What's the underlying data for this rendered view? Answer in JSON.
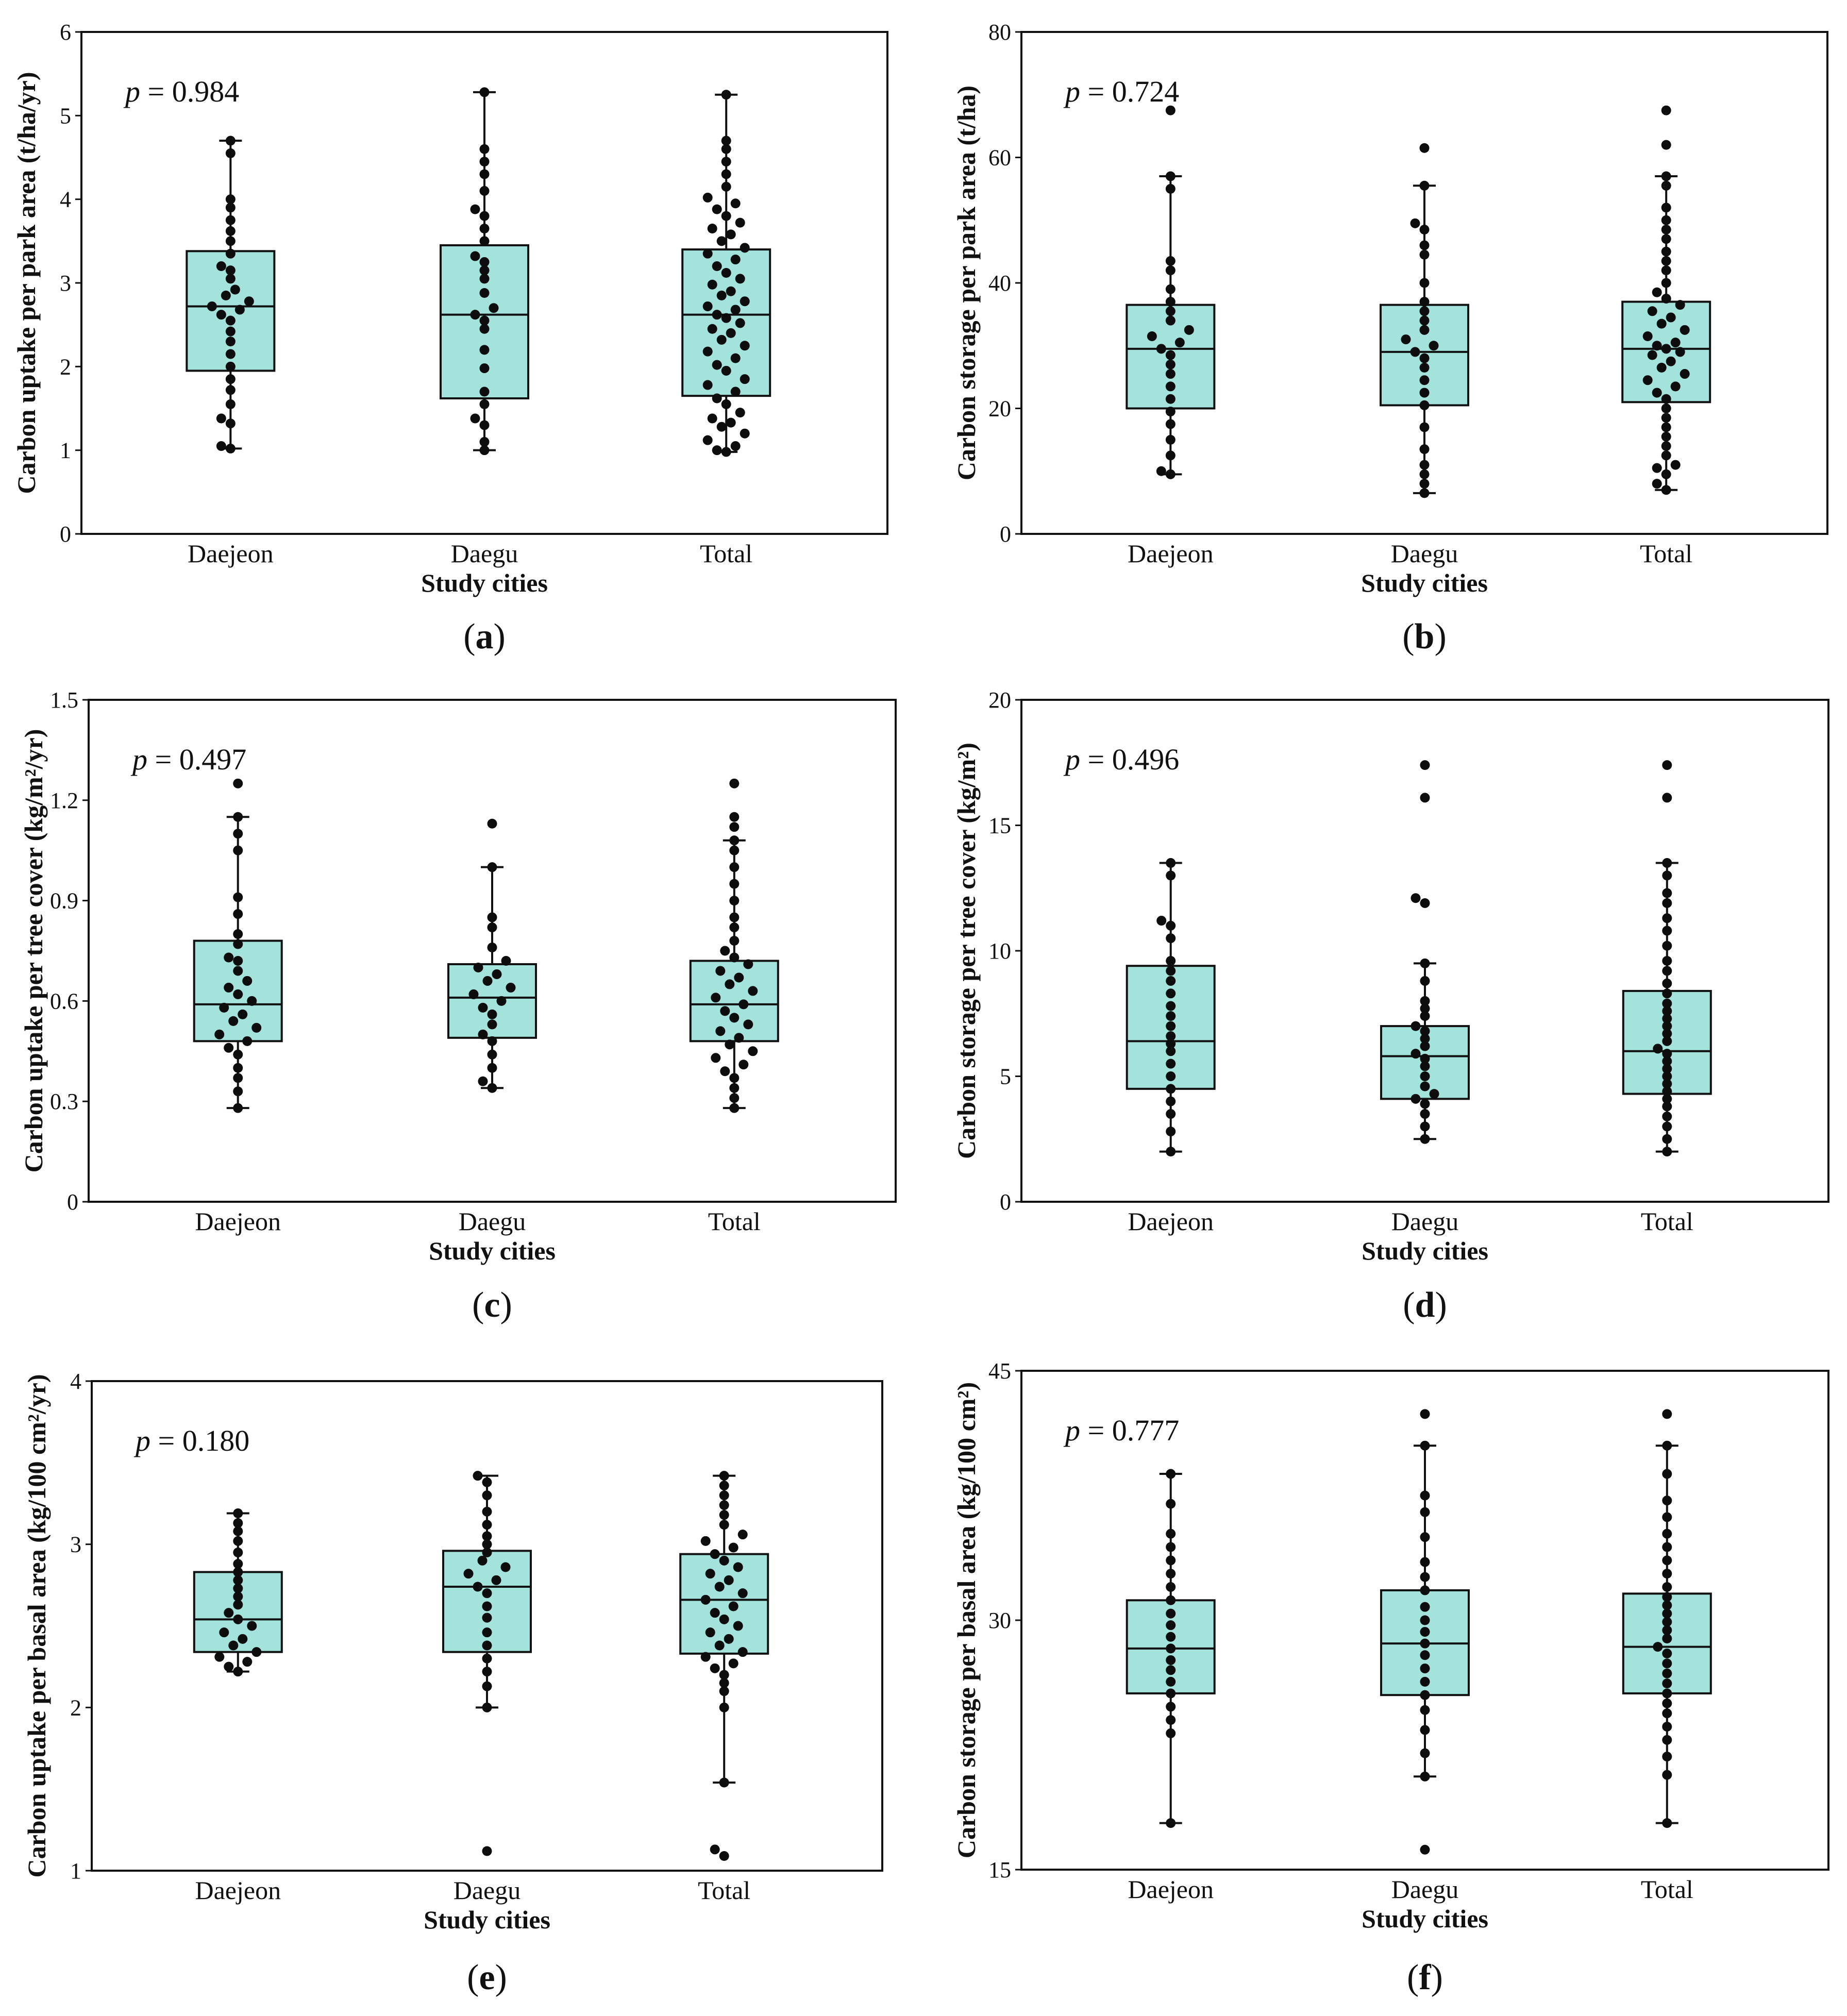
{
  "chart_data": [
    {
      "id": "a",
      "type": "box",
      "caption": "a",
      "p_value": "0.984",
      "ylabel": "Carbon uptake per park area (t/ha/yr)",
      "xlabel": "Study cities",
      "ylim": [
        0,
        6
      ],
      "yticks": [
        0,
        1,
        2,
        3,
        4,
        5,
        6
      ],
      "ytick_labels": [
        "0",
        "1",
        "2",
        "3",
        "4",
        "5",
        "6"
      ],
      "categories": [
        "Daejeon",
        "Daegu",
        "Total"
      ],
      "boxes": [
        {
          "city": "Daejeon",
          "min": 1.02,
          "q1": 1.95,
          "median": 2.72,
          "q3": 3.38,
          "max": 4.7,
          "points": [
            1.02,
            1.05,
            1.32,
            1.38,
            1.55,
            1.72,
            1.85,
            2.0,
            2.15,
            2.3,
            2.42,
            2.55,
            2.62,
            2.68,
            2.72,
            2.78,
            2.85,
            2.92,
            3.05,
            3.15,
            3.2,
            3.35,
            3.5,
            3.62,
            3.75,
            3.9,
            4.0,
            4.55,
            4.7
          ]
        },
        {
          "city": "Daegu",
          "min": 1.0,
          "q1": 1.62,
          "median": 2.62,
          "q3": 3.45,
          "max": 5.28,
          "points": [
            1.0,
            1.1,
            1.3,
            1.38,
            1.55,
            1.7,
            1.98,
            2.2,
            2.45,
            2.55,
            2.62,
            2.7,
            2.88,
            3.05,
            3.15,
            3.25,
            3.32,
            3.5,
            3.65,
            3.8,
            3.88,
            4.1,
            4.3,
            4.45,
            4.6,
            5.28
          ]
        },
        {
          "city": "Total",
          "min": 0.98,
          "q1": 1.65,
          "median": 2.62,
          "q3": 3.4,
          "max": 5.25,
          "points": [
            0.98,
            1.0,
            1.05,
            1.12,
            1.2,
            1.28,
            1.33,
            1.38,
            1.45,
            1.55,
            1.62,
            1.7,
            1.78,
            1.85,
            1.95,
            2.02,
            2.1,
            2.18,
            2.25,
            2.32,
            2.4,
            2.45,
            2.52,
            2.58,
            2.62,
            2.68,
            2.72,
            2.78,
            2.85,
            2.9,
            2.98,
            3.05,
            3.12,
            3.2,
            3.28,
            3.35,
            3.42,
            3.5,
            3.58,
            3.65,
            3.72,
            3.8,
            3.88,
            3.95,
            4.02,
            4.15,
            4.3,
            4.45,
            4.6,
            4.7,
            5.25
          ]
        }
      ]
    },
    {
      "id": "b",
      "type": "box",
      "caption": "b",
      "p_value": "0.724",
      "ylabel": "Carbon storage per park area (t/ha)",
      "xlabel": "Study cities",
      "ylim": [
        0,
        80
      ],
      "yticks": [
        0,
        20,
        40,
        60,
        80
      ],
      "ytick_labels": [
        "0",
        "20",
        "40",
        "60",
        "80"
      ],
      "categories": [
        "Daejeon",
        "Daegu",
        "Total"
      ],
      "boxes": [
        {
          "city": "Daejeon",
          "min": 9.5,
          "q1": 20.0,
          "median": 29.5,
          "q3": 36.5,
          "max": 57.0,
          "points": [
            9.5,
            10.0,
            12.5,
            15.0,
            17.5,
            19.5,
            21.5,
            23.5,
            25.5,
            27.0,
            28.5,
            29.5,
            30.5,
            31.5,
            32.5,
            34.0,
            35.5,
            37.0,
            39.0,
            42.0,
            43.5,
            55.0,
            57.0,
            67.5
          ]
        },
        {
          "city": "Daegu",
          "min": 6.5,
          "q1": 20.5,
          "median": 29.0,
          "q3": 36.5,
          "max": 55.5,
          "points": [
            6.5,
            8.0,
            9.5,
            11.0,
            13.5,
            17.0,
            20.5,
            22.5,
            24.5,
            26.5,
            28.0,
            29.0,
            30.0,
            31.0,
            32.5,
            34.0,
            35.5,
            37.0,
            40.0,
            44.5,
            46.0,
            48.5,
            49.5,
            55.5,
            61.5
          ]
        },
        {
          "city": "Total",
          "min": 7.0,
          "q1": 21.0,
          "median": 29.5,
          "q3": 37.0,
          "max": 57.0,
          "points": [
            7.0,
            8.0,
            9.5,
            10.5,
            11.0,
            12.5,
            14.0,
            15.5,
            17.0,
            18.5,
            20.0,
            21.5,
            22.5,
            23.5,
            24.5,
            25.5,
            26.5,
            27.5,
            28.5,
            29.0,
            29.5,
            30.0,
            30.5,
            31.5,
            32.5,
            33.5,
            34.5,
            35.5,
            36.5,
            37.5,
            38.5,
            40.0,
            42.0,
            43.5,
            45.0,
            47.0,
            48.5,
            50.0,
            52.0,
            55.5,
            57.0,
            62.0,
            67.5
          ]
        }
      ]
    },
    {
      "id": "c",
      "type": "box",
      "caption": "c",
      "p_value": "0.497",
      "ylabel": "Carbon uptake per tree cover (kg/m²/yr)",
      "xlabel": "Study cities",
      "ylim": [
        0,
        1.5
      ],
      "yticks": [
        0,
        0.3,
        0.6,
        0.9,
        1.2,
        1.5
      ],
      "ytick_labels": [
        "0",
        "0.3",
        "0.6",
        "0.9",
        "1.2",
        "1.5"
      ],
      "categories": [
        "Daejeon",
        "Daegu",
        "Total"
      ],
      "boxes": [
        {
          "city": "Daejeon",
          "min": 0.28,
          "q1": 0.48,
          "median": 0.59,
          "q3": 0.78,
          "max": 1.15,
          "points": [
            0.28,
            0.33,
            0.37,
            0.4,
            0.44,
            0.46,
            0.48,
            0.5,
            0.52,
            0.54,
            0.56,
            0.58,
            0.6,
            0.62,
            0.64,
            0.66,
            0.69,
            0.72,
            0.73,
            0.77,
            0.8,
            0.86,
            0.91,
            1.05,
            1.1,
            1.15,
            1.25
          ]
        },
        {
          "city": "Daegu",
          "min": 0.34,
          "q1": 0.49,
          "median": 0.61,
          "q3": 0.71,
          "max": 1.0,
          "points": [
            0.34,
            0.36,
            0.4,
            0.44,
            0.48,
            0.5,
            0.53,
            0.56,
            0.58,
            0.6,
            0.62,
            0.64,
            0.66,
            0.68,
            0.7,
            0.72,
            0.76,
            0.82,
            0.85,
            1.0,
            1.13
          ]
        },
        {
          "city": "Total",
          "min": 0.28,
          "q1": 0.48,
          "median": 0.59,
          "q3": 0.72,
          "max": 1.08,
          "points": [
            0.28,
            0.31,
            0.34,
            0.37,
            0.39,
            0.41,
            0.43,
            0.45,
            0.47,
            0.49,
            0.51,
            0.53,
            0.55,
            0.57,
            0.59,
            0.61,
            0.63,
            0.65,
            0.67,
            0.69,
            0.71,
            0.73,
            0.75,
            0.78,
            0.82,
            0.85,
            0.9,
            0.95,
            1.0,
            1.05,
            1.08,
            1.12,
            1.15,
            1.25
          ]
        }
      ]
    },
    {
      "id": "d",
      "type": "box",
      "caption": "d",
      "p_value": "0.496",
      "ylabel": "Carbon storage per tree cover (kg/m²)",
      "xlabel": "Study cities",
      "ylim": [
        0,
        20
      ],
      "yticks": [
        0,
        5,
        10,
        15,
        20
      ],
      "ytick_labels": [
        "0",
        "5",
        "10",
        "15",
        "20"
      ],
      "categories": [
        "Daejeon",
        "Daegu",
        "Total"
      ],
      "boxes": [
        {
          "city": "Daejeon",
          "min": 2.0,
          "q1": 4.5,
          "median": 6.4,
          "q3": 9.4,
          "max": 13.5,
          "points": [
            2.0,
            2.8,
            3.5,
            4.0,
            4.5,
            5.0,
            5.5,
            6.0,
            6.3,
            6.6,
            7.0,
            7.4,
            7.8,
            8.3,
            8.8,
            9.2,
            9.6,
            10.5,
            11.0,
            11.2,
            13.0,
            13.5
          ]
        },
        {
          "city": "Daegu",
          "min": 2.5,
          "q1": 4.1,
          "median": 5.8,
          "q3": 7.0,
          "max": 9.5,
          "points": [
            2.5,
            3.0,
            3.5,
            3.9,
            4.1,
            4.3,
            4.6,
            5.0,
            5.4,
            5.7,
            5.9,
            6.2,
            6.5,
            6.8,
            7.0,
            7.4,
            7.7,
            8.0,
            8.8,
            9.5,
            11.9,
            12.1,
            16.1,
            17.4
          ]
        },
        {
          "city": "Total",
          "min": 2.0,
          "q1": 4.3,
          "median": 6.0,
          "q3": 8.4,
          "max": 13.5,
          "points": [
            2.0,
            2.5,
            3.0,
            3.4,
            3.8,
            4.1,
            4.4,
            4.7,
            5.0,
            5.3,
            5.6,
            5.9,
            6.1,
            6.4,
            6.7,
            7.0,
            7.3,
            7.6,
            7.9,
            8.3,
            8.7,
            9.2,
            9.6,
            10.2,
            10.8,
            11.3,
            11.9,
            12.3,
            13.0,
            13.5,
            16.1,
            17.4
          ]
        }
      ]
    },
    {
      "id": "e",
      "type": "box",
      "caption": "e",
      "p_value": "0.180",
      "ylabel": "Carbon uptake per basal area (kg/100 cm²/yr)",
      "xlabel": "Study cities",
      "ylim": [
        1,
        4
      ],
      "yticks": [
        1,
        2,
        3,
        4
      ],
      "ytick_labels": [
        "1",
        "2",
        "3",
        "4"
      ],
      "categories": [
        "Daejeon",
        "Daegu",
        "Total"
      ],
      "boxes": [
        {
          "city": "Daejeon",
          "min": 2.22,
          "q1": 2.34,
          "median": 2.54,
          "q3": 2.83,
          "max": 3.19,
          "points": [
            2.22,
            2.25,
            2.28,
            2.31,
            2.34,
            2.38,
            2.42,
            2.46,
            2.5,
            2.54,
            2.58,
            2.63,
            2.68,
            2.73,
            2.78,
            2.83,
            2.88,
            2.95,
            3.02,
            3.08,
            3.13,
            3.19
          ]
        },
        {
          "city": "Daegu",
          "min": 2.0,
          "q1": 2.34,
          "median": 2.74,
          "q3": 2.96,
          "max": 3.42,
          "points": [
            2.0,
            2.13,
            2.22,
            2.3,
            2.38,
            2.46,
            2.55,
            2.62,
            2.7,
            2.74,
            2.78,
            2.82,
            2.86,
            2.9,
            2.95,
            3.0,
            3.05,
            3.12,
            3.2,
            3.3,
            3.38,
            3.42,
            1.12
          ]
        },
        {
          "city": "Total",
          "min": 1.54,
          "q1": 2.33,
          "median": 2.66,
          "q3": 2.94,
          "max": 3.42,
          "points": [
            1.54,
            2.0,
            2.1,
            2.15,
            2.2,
            2.24,
            2.27,
            2.31,
            2.34,
            2.38,
            2.42,
            2.46,
            2.5,
            2.54,
            2.58,
            2.62,
            2.66,
            2.7,
            2.74,
            2.78,
            2.82,
            2.86,
            2.9,
            2.94,
            2.98,
            3.02,
            3.06,
            3.12,
            3.18,
            3.24,
            3.3,
            3.36,
            3.42,
            1.09,
            1.13
          ]
        }
      ]
    },
    {
      "id": "f",
      "type": "box",
      "caption": "f",
      "p_value": "0.777",
      "ylabel": "Carbon storage per basal area (kg/100 cm²)",
      "xlabel": "Study cities",
      "ylim": [
        15,
        45
      ],
      "yticks": [
        15,
        30,
        45
      ],
      "ytick_labels": [
        "15",
        "30",
        "45"
      ],
      "categories": [
        "Daejeon",
        "Daegu",
        "Total"
      ],
      "boxes": [
        {
          "city": "Daejeon",
          "min": 17.8,
          "q1": 25.6,
          "median": 28.3,
          "q3": 31.2,
          "max": 38.8,
          "points": [
            17.8,
            23.2,
            24.0,
            24.8,
            25.6,
            26.3,
            27.0,
            27.6,
            28.3,
            29.0,
            29.7,
            30.4,
            31.2,
            32.0,
            32.8,
            33.6,
            34.4,
            35.2,
            37.0,
            38.8
          ]
        },
        {
          "city": "Daegu",
          "min": 20.6,
          "q1": 25.5,
          "median": 28.6,
          "q3": 31.8,
          "max": 40.5,
          "points": [
            16.2,
            20.6,
            22.0,
            23.4,
            24.6,
            25.5,
            26.3,
            27.1,
            27.9,
            28.6,
            29.3,
            30.0,
            30.8,
            31.8,
            32.6,
            33.5,
            35.0,
            36.5,
            37.5,
            40.5,
            42.4
          ]
        },
        {
          "city": "Total",
          "min": 17.8,
          "q1": 25.6,
          "median": 28.4,
          "q3": 31.6,
          "max": 40.5,
          "points": [
            17.8,
            20.7,
            21.8,
            22.8,
            23.6,
            24.4,
            25.0,
            25.6,
            26.2,
            26.8,
            27.4,
            28.0,
            28.4,
            28.9,
            29.4,
            29.9,
            30.4,
            30.9,
            31.4,
            32.0,
            32.8,
            33.6,
            34.4,
            35.2,
            36.2,
            37.2,
            38.8,
            40.5,
            42.4
          ]
        }
      ]
    }
  ],
  "style": {
    "box_fill": "#a4e2dc",
    "line": "#111111",
    "dot": "#0d0d0d"
  }
}
